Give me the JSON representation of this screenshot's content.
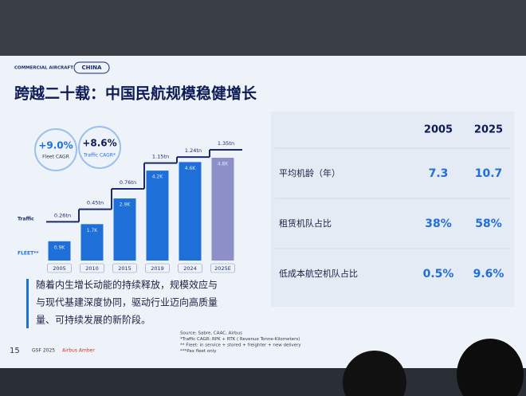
{
  "header": {
    "section": "COMMERCIAL AIRCRAFT",
    "tag": "CHINA",
    "title": "跨越二十载：中国民航规模稳健增长"
  },
  "chart_data": {
    "type": "combo",
    "categories": [
      "2005",
      "2010",
      "2015",
      "2019",
      "2024",
      "2025E"
    ],
    "annotations": [
      {
        "value": "+9.0%",
        "label": "Fleet CAGR"
      },
      {
        "value": "+8.6%",
        "label": "Traffic CAGR*"
      }
    ],
    "series": [
      {
        "name": "Traffic",
        "type": "step",
        "color": "#1a2a6c",
        "values": [
          0.26,
          0.45,
          0.76,
          1.15,
          1.24,
          1.35
        ],
        "value_labels": [
          "0.26tn",
          "0.45tn",
          "0.76tn",
          "1.15tn",
          "1.24tn",
          "1.35tn"
        ]
      },
      {
        "name": "FLEET**",
        "type": "bar",
        "color": "#1f6fd8",
        "colors": [
          "#1f6fd8",
          "#1f6fd8",
          "#1f6fd8",
          "#1f6fd8",
          "#1f6fd8",
          "#8d90c8"
        ],
        "values": [
          0.9,
          1.7,
          2.9,
          4.2,
          4.6,
          4.8
        ],
        "value_labels": [
          "0.9K",
          "1.7K",
          "2.9K",
          "4.2K",
          "4.6K",
          "4.8K"
        ]
      }
    ]
  },
  "table": {
    "header": [
      "2005",
      "2025"
    ],
    "rows": [
      [
        "平均机龄（年）",
        "7.3",
        "10.7"
      ],
      [
        "租赁机队占比",
        "38%",
        "58%"
      ],
      [
        "低成本航空机队占比",
        "0.5%",
        "9.6%"
      ]
    ]
  },
  "paragraph": [
    "随着内生增长动能的持续释放，规模效应与",
    "与现代基建深度协同，驱动行业迈向高质量",
    "量、可持续发展的新阶段。"
  ],
  "notes": [
    "Source: Sabre, CAAC, Airbus",
    "*Traffic CAGR: RPK + RTK ( Revenue Tonne-Kilometers)",
    "** Fleet: in service + stored + freighter + new delivery",
    "***Pax fleet only"
  ],
  "footer": {
    "page": "15",
    "event": "GSF 2025",
    "brand": "Airbus Amber"
  }
}
